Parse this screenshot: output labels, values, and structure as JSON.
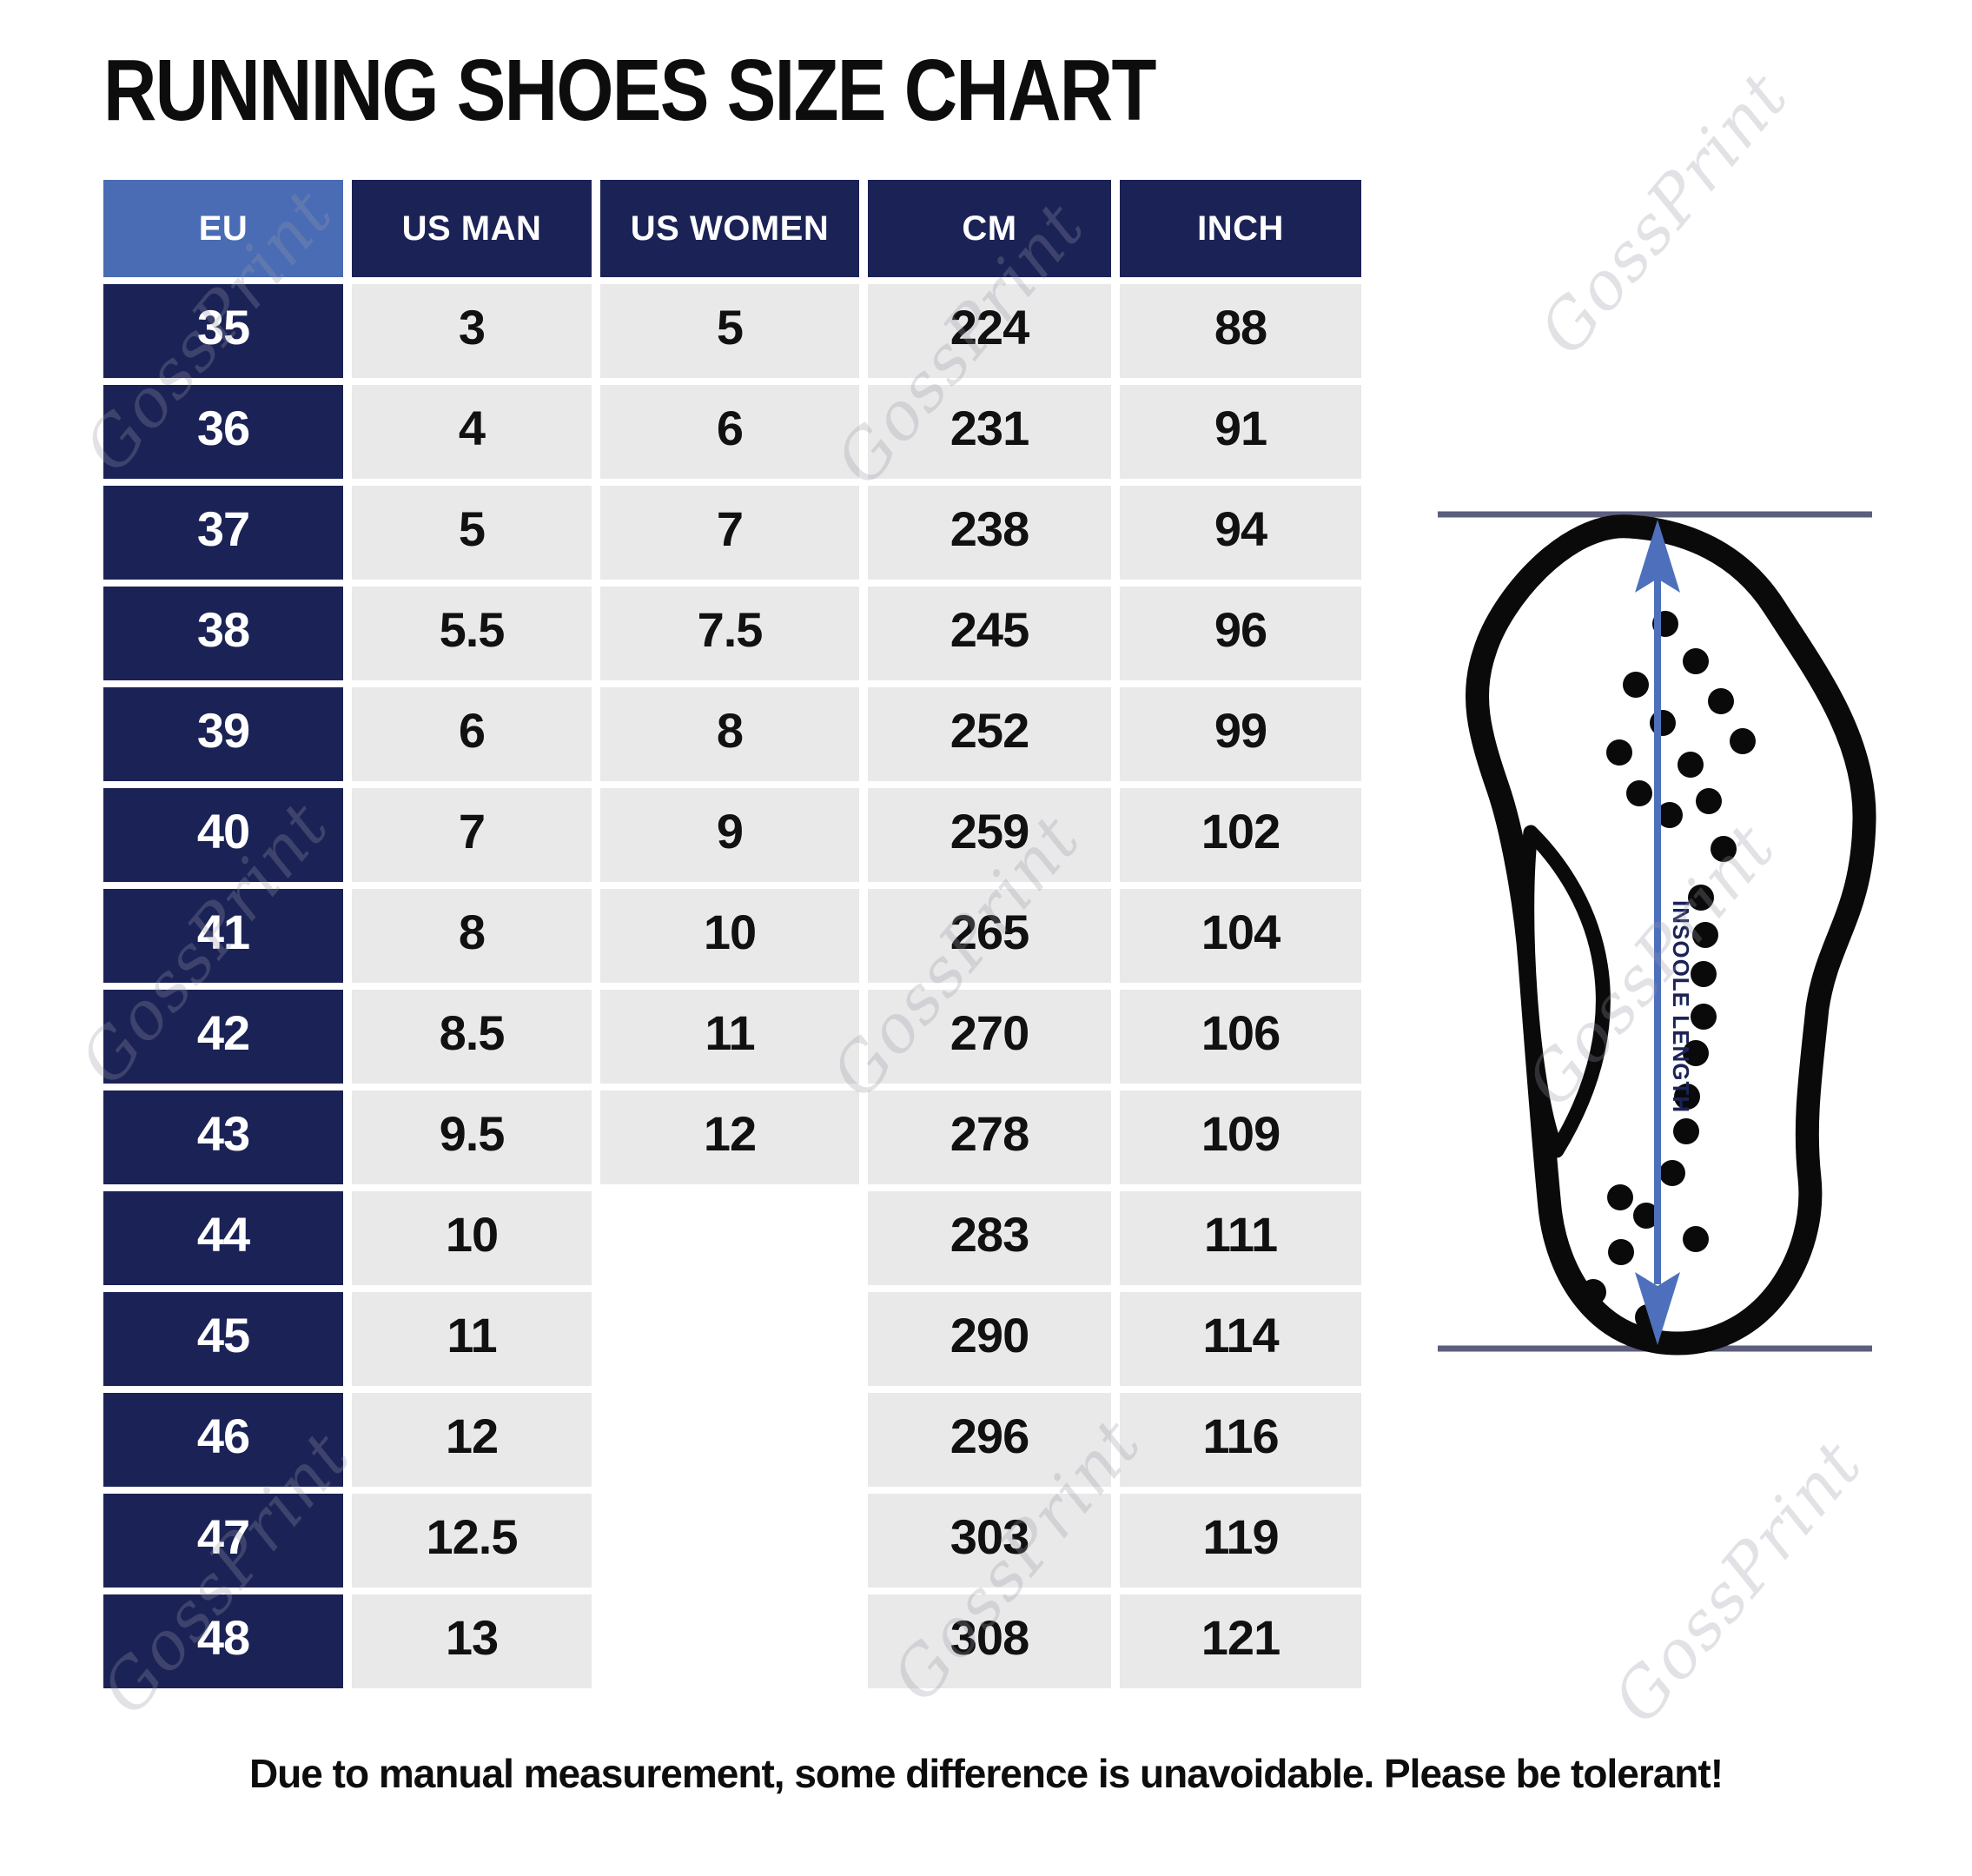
{
  "title": "RUNNING SHOES SIZE CHART",
  "table": {
    "headers": [
      "EU",
      "US MAN",
      "US WOMEN",
      "CM",
      "INCH"
    ],
    "rows": [
      [
        "35",
        "3",
        "5",
        "224",
        "88"
      ],
      [
        "36",
        "4",
        "6",
        "231",
        "91"
      ],
      [
        "37",
        "5",
        "7",
        "238",
        "94"
      ],
      [
        "38",
        "5.5",
        "7.5",
        "245",
        "96"
      ],
      [
        "39",
        "6",
        "8",
        "252",
        "99"
      ],
      [
        "40",
        "7",
        "9",
        "259",
        "102"
      ],
      [
        "41",
        "8",
        "10",
        "265",
        "104"
      ],
      [
        "42",
        "8.5",
        "11",
        "270",
        "106"
      ],
      [
        "43",
        "9.5",
        "12",
        "278",
        "109"
      ],
      [
        "44",
        "10",
        "",
        "283",
        "111"
      ],
      [
        "45",
        "11",
        "",
        "290",
        "114"
      ],
      [
        "46",
        "12",
        "",
        "296",
        "116"
      ],
      [
        "47",
        "12.5",
        "",
        "303",
        "119"
      ],
      [
        "48",
        "13",
        "",
        "308",
        "121"
      ]
    ]
  },
  "chart_data": {
    "type": "table",
    "title": "RUNNING SHOES SIZE CHART",
    "columns": [
      "EU",
      "US MAN",
      "US WOMEN",
      "CM",
      "INCH"
    ],
    "rows": [
      [
        35,
        3,
        5,
        224,
        88
      ],
      [
        36,
        4,
        6,
        231,
        91
      ],
      [
        37,
        5,
        7,
        238,
        94
      ],
      [
        38,
        5.5,
        7.5,
        245,
        96
      ],
      [
        39,
        6,
        8,
        252,
        99
      ],
      [
        40,
        7,
        9,
        259,
        102
      ],
      [
        41,
        8,
        10,
        265,
        104
      ],
      [
        42,
        8.5,
        11,
        270,
        106
      ],
      [
        43,
        9.5,
        12,
        278,
        109
      ],
      [
        44,
        10,
        null,
        283,
        111
      ],
      [
        45,
        11,
        null,
        290,
        114
      ],
      [
        46,
        12,
        null,
        296,
        116
      ],
      [
        47,
        12.5,
        null,
        303,
        119
      ],
      [
        48,
        13,
        null,
        308,
        121
      ]
    ]
  },
  "diagram": {
    "insole_label": "INSOOLE LENGTH"
  },
  "watermark": {
    "text": "GossPrint"
  },
  "footer": {
    "note": "Due to manual measurement, some difference is unavoidable. Please be tolerant!"
  },
  "colors": {
    "navy": "#1b2356",
    "light_blue": "#4a6cb4",
    "cell_gray": "#e9e9e9",
    "arrow_blue": "#4e70bc",
    "boundary_line": "#5b5e7d",
    "text_black": "#0d0d0d"
  }
}
